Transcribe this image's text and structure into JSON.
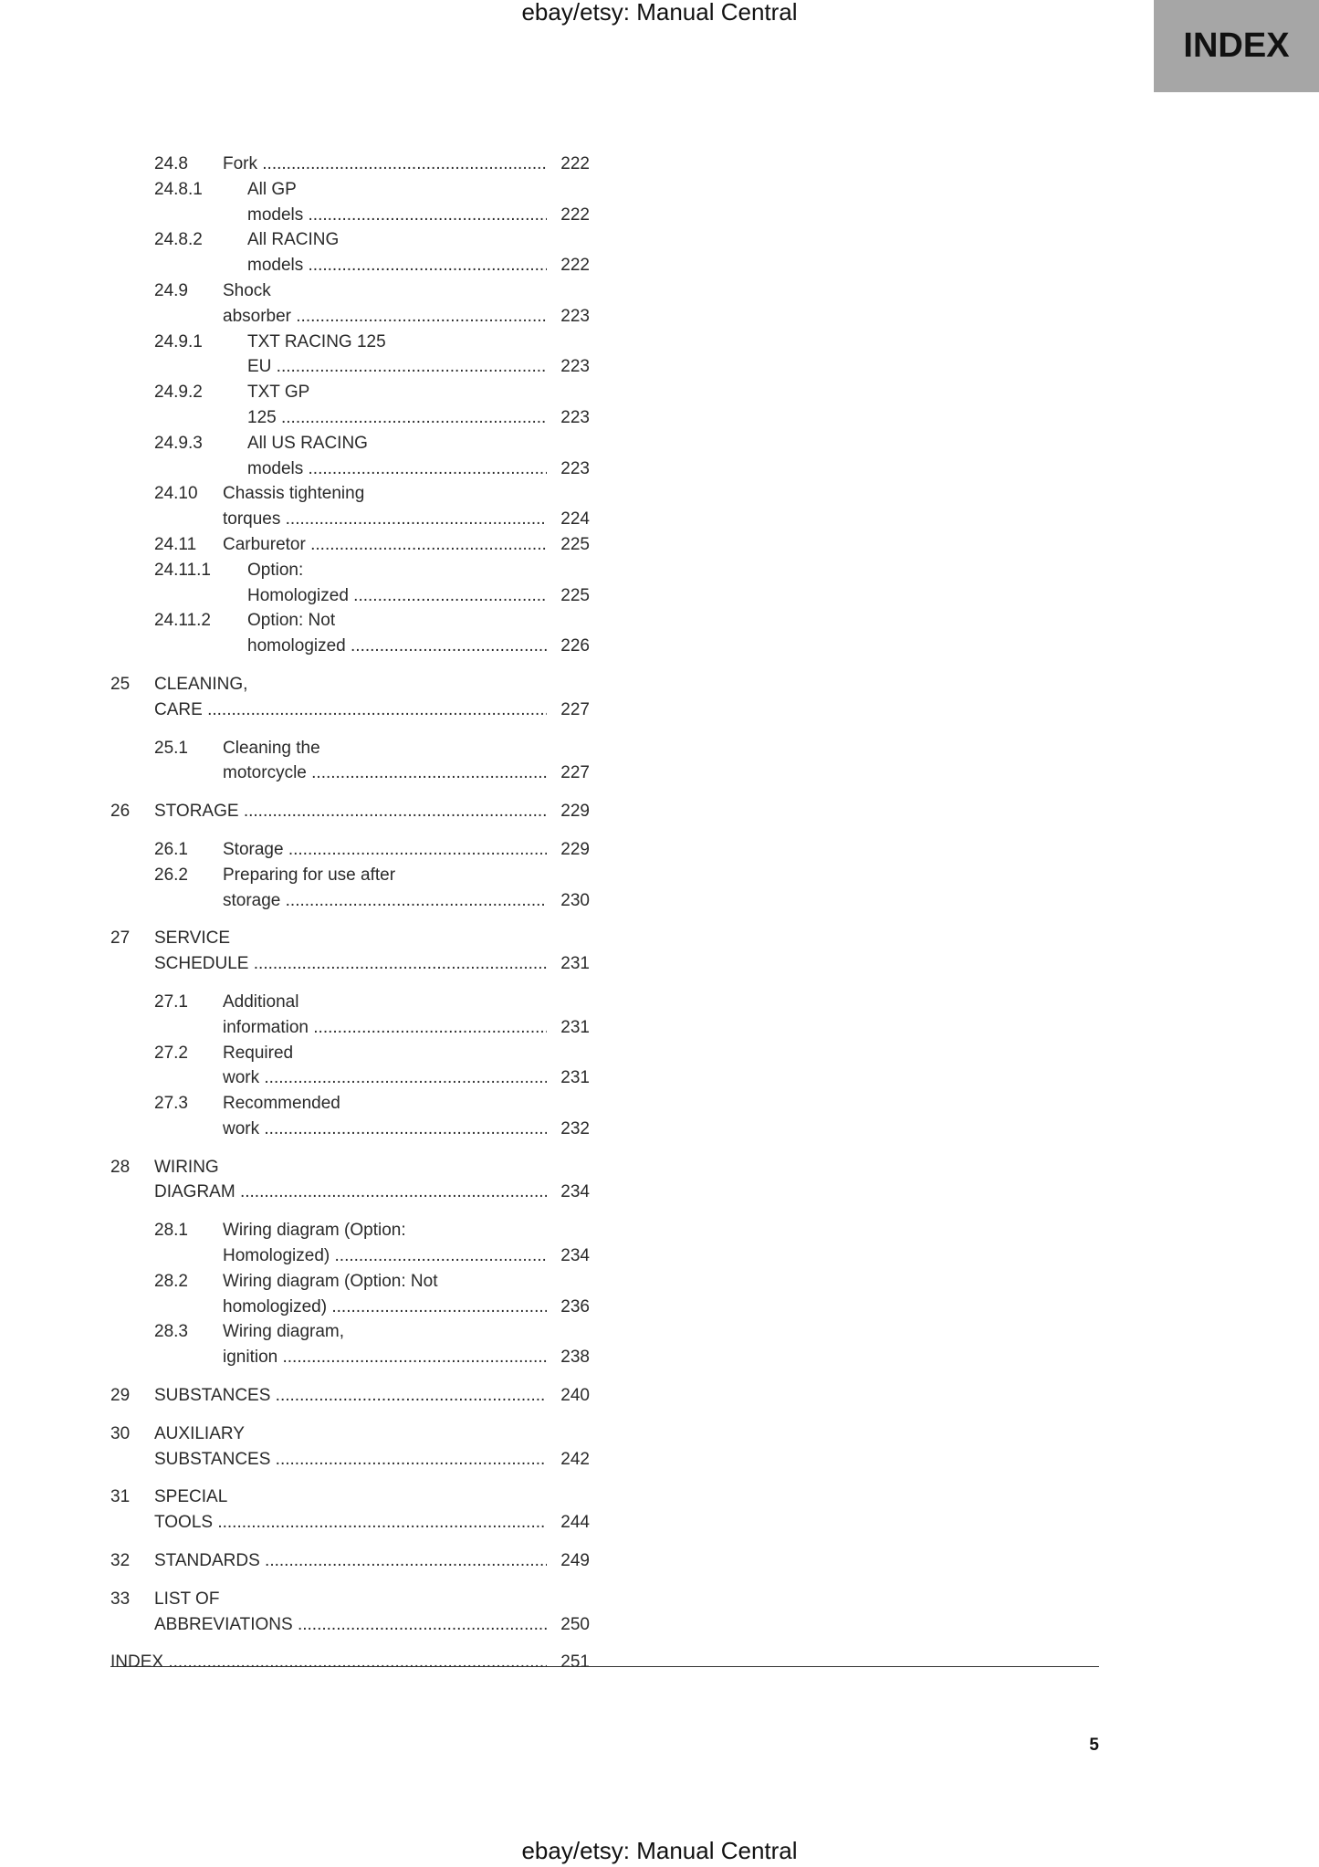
{
  "header": {
    "text": "ebay/etsy: Manual Central"
  },
  "footer": {
    "text": "ebay/etsy: Manual Central",
    "page_number": "5"
  },
  "tab": {
    "label": "INDEX",
    "color": "#a6a6a6"
  },
  "toc": [
    {
      "level": "section",
      "num": "24.8",
      "title": "Fork",
      "page": "222"
    },
    {
      "level": "subsection",
      "num": "24.8.1",
      "title": "All GP models",
      "page": "222"
    },
    {
      "level": "subsection",
      "num": "24.8.2",
      "title": "All RACING models",
      "page": "222"
    },
    {
      "level": "section",
      "num": "24.9",
      "title": "Shock absorber",
      "page": "223"
    },
    {
      "level": "subsection",
      "num": "24.9.1",
      "title": "TXT RACING 125 EU",
      "page": "223"
    },
    {
      "level": "subsection",
      "num": "24.9.2",
      "title": "TXT GP 125",
      "page": "223"
    },
    {
      "level": "subsection",
      "num": "24.9.3",
      "title": "All US RACING models",
      "page": "223"
    },
    {
      "level": "section",
      "num": "24.10",
      "title": "Chassis tightening torques",
      "page": "224"
    },
    {
      "level": "section",
      "num": "24.11",
      "title": "Carburetor",
      "page": "225"
    },
    {
      "level": "subsection",
      "num": "24.11.1",
      "title": "Option: Homologized",
      "page": "225"
    },
    {
      "level": "subsection",
      "num": "24.11.2",
      "title": "Option: Not homologized",
      "page": "226"
    },
    {
      "level": "chapter",
      "num": "25",
      "title": "CLEANING, CARE",
      "page": "227"
    },
    {
      "level": "section",
      "num": "25.1",
      "title": "Cleaning the motorcycle",
      "page": "227"
    },
    {
      "level": "chapter",
      "num": "26",
      "title": "STORAGE",
      "page": "229"
    },
    {
      "level": "section",
      "num": "26.1",
      "title": "Storage",
      "page": "229"
    },
    {
      "level": "section",
      "num": "26.2",
      "title": "Preparing for use after storage",
      "page": "230"
    },
    {
      "level": "chapter",
      "num": "27",
      "title": "SERVICE SCHEDULE",
      "page": "231"
    },
    {
      "level": "section",
      "num": "27.1",
      "title": "Additional information",
      "page": "231"
    },
    {
      "level": "section",
      "num": "27.2",
      "title": "Required work",
      "page": "231"
    },
    {
      "level": "section",
      "num": "27.3",
      "title": "Recommended work",
      "page": "232"
    },
    {
      "level": "chapter",
      "num": "28",
      "title": "WIRING DIAGRAM",
      "page": "234"
    },
    {
      "level": "section",
      "num": "28.1",
      "title": "Wiring diagram (Option: Homologized)",
      "page": "234"
    },
    {
      "level": "section",
      "num": "28.2",
      "title": "Wiring diagram (Option: Not homologized)",
      "page": "236"
    },
    {
      "level": "section",
      "num": "28.3",
      "title": "Wiring diagram, ignition",
      "page": "238"
    },
    {
      "level": "chapter",
      "num": "29",
      "title": "SUBSTANCES",
      "page": "240"
    },
    {
      "level": "chapter",
      "num": "30",
      "title": "AUXILIARY SUBSTANCES",
      "page": "242"
    },
    {
      "level": "chapter",
      "num": "31",
      "title": "SPECIAL TOOLS",
      "page": "244"
    },
    {
      "level": "chapter",
      "num": "32",
      "title": "STANDARDS",
      "page": "249"
    },
    {
      "level": "chapter",
      "num": "33",
      "title": "LIST OF ABBREVIATIONS",
      "page": "250"
    },
    {
      "level": "top",
      "num": "",
      "title": "INDEX",
      "page": "251"
    }
  ]
}
